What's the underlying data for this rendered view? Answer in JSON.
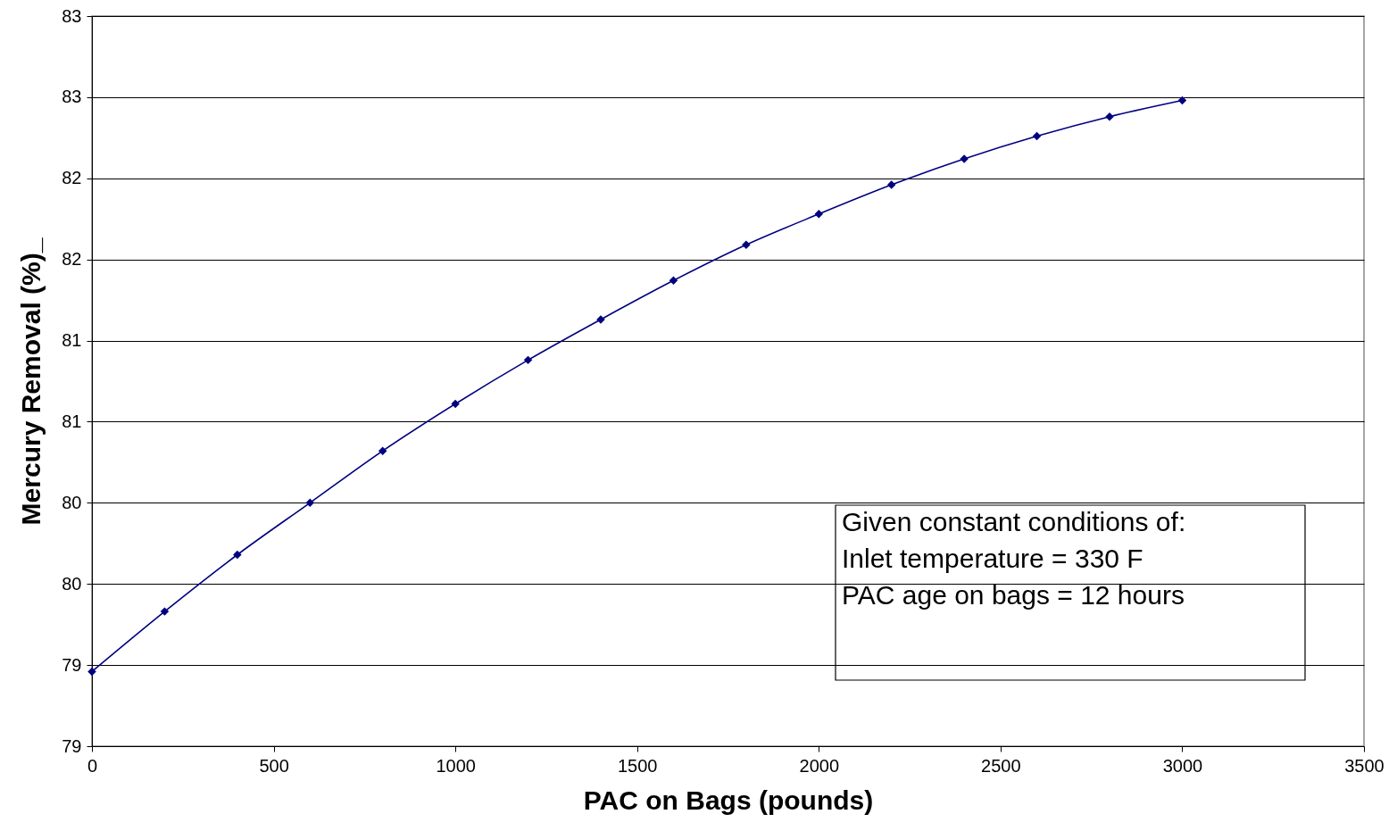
{
  "chart_data": {
    "type": "line",
    "xlabel": "PAC on Bags (pounds)",
    "ylabel": "Mercury Removal (%)_",
    "x": [
      0,
      200,
      400,
      600,
      800,
      1000,
      1200,
      1400,
      1600,
      1800,
      2000,
      2200,
      2400,
      2600,
      2800,
      3000
    ],
    "series": [
      {
        "color": "#000080",
        "values": [
          78.96,
          79.33,
          79.68,
          80.0,
          80.32,
          80.61,
          80.88,
          81.13,
          81.37,
          81.59,
          81.78,
          81.96,
          82.12,
          82.26,
          82.38,
          82.48
        ]
      }
    ],
    "xlim": [
      0,
      3500
    ],
    "xticks": [
      0,
      500,
      1000,
      1500,
      2000,
      2500,
      3000,
      3500
    ],
    "ylim": [
      78.5,
      83
    ],
    "yticks": [
      {
        "value": 78.5,
        "label": "79"
      },
      {
        "value": 79,
        "label": "79"
      },
      {
        "value": 79.5,
        "label": "80"
      },
      {
        "value": 80,
        "label": "80"
      },
      {
        "value": 80.5,
        "label": "81"
      },
      {
        "value": 81,
        "label": "81"
      },
      {
        "value": 81.5,
        "label": "82"
      },
      {
        "value": 82,
        "label": "82"
      },
      {
        "value": 82.5,
        "label": "83"
      },
      {
        "value": 83,
        "label": "83"
      }
    ],
    "grid": "y",
    "marker": "diamond",
    "line_style": "solid",
    "annotations": [
      "Given constant conditions of:",
      "Inlet temperature = 330 F",
      "PAC age on bags = 12 hours"
    ]
  }
}
